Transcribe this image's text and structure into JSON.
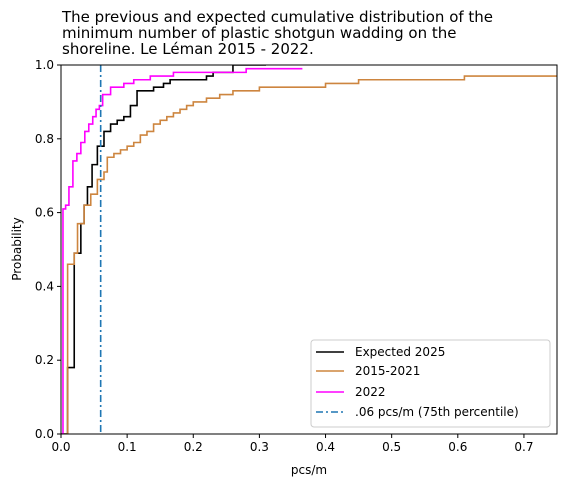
{
  "chart_data": {
    "type": "line",
    "subtype": "ecdf-step",
    "title_lines": [
      "The previous and expected cumulative distribution of the",
      "minimum number of plastic shotgun wadding on the",
      "shoreline. Le Léman 2015 - 2022."
    ],
    "xlabel": "pcs/m",
    "ylabel": "Probability",
    "xlim": [
      0,
      0.75
    ],
    "ylim": [
      0,
      1.0
    ],
    "xticks": [
      0.0,
      0.1,
      0.2,
      0.3,
      0.4,
      0.5,
      0.6,
      0.7
    ],
    "xtick_labels": [
      "0.0",
      "0.1",
      "0.2",
      "0.3",
      "0.4",
      "0.5",
      "0.6",
      "0.7"
    ],
    "yticks": [
      0.0,
      0.2,
      0.4,
      0.6,
      0.8,
      1.0
    ],
    "ytick_labels": [
      "0.0",
      "0.2",
      "0.4",
      "0.6",
      "0.8",
      "1.0"
    ],
    "grid": false,
    "legend_position": "bottom-right",
    "series": [
      {
        "name": "Expected 2025",
        "color": "#000000",
        "style": "solid",
        "x": [
          0.0,
          0.01,
          0.013,
          0.02,
          0.03,
          0.035,
          0.04,
          0.047,
          0.055,
          0.06,
          0.065,
          0.075,
          0.085,
          0.095,
          0.105,
          0.115,
          0.13,
          0.14,
          0.155,
          0.165,
          0.19,
          0.22,
          0.23,
          0.26,
          0.3,
          0.31
        ],
        "y": [
          0.0,
          0.18,
          0.18,
          0.49,
          0.57,
          0.62,
          0.67,
          0.73,
          0.78,
          0.78,
          0.82,
          0.84,
          0.85,
          0.86,
          0.89,
          0.93,
          0.93,
          0.94,
          0.95,
          0.96,
          0.96,
          0.97,
          0.98,
          1.0,
          1.0,
          1.0
        ]
      },
      {
        "name": "2015-2021",
        "color": "#cd853f",
        "style": "solid",
        "x": [
          0.0,
          0.01,
          0.02,
          0.025,
          0.035,
          0.045,
          0.055,
          0.065,
          0.07,
          0.08,
          0.09,
          0.1,
          0.11,
          0.12,
          0.13,
          0.14,
          0.15,
          0.16,
          0.17,
          0.18,
          0.19,
          0.2,
          0.22,
          0.24,
          0.26,
          0.3,
          0.4,
          0.45,
          0.5,
          0.55,
          0.61,
          0.75
        ],
        "y": [
          0.0,
          0.46,
          0.49,
          0.57,
          0.62,
          0.65,
          0.69,
          0.71,
          0.75,
          0.76,
          0.77,
          0.78,
          0.79,
          0.81,
          0.82,
          0.84,
          0.85,
          0.86,
          0.87,
          0.88,
          0.89,
          0.9,
          0.91,
          0.92,
          0.93,
          0.94,
          0.95,
          0.96,
          0.96,
          0.96,
          0.97,
          0.97
        ]
      },
      {
        "name": "2022",
        "color": "#ff00ff",
        "style": "solid",
        "x": [
          0.0,
          0.003,
          0.007,
          0.012,
          0.018,
          0.024,
          0.03,
          0.036,
          0.042,
          0.048,
          0.053,
          0.058,
          0.063,
          0.075,
          0.095,
          0.11,
          0.125,
          0.135,
          0.15,
          0.17,
          0.2,
          0.24,
          0.28,
          0.31,
          0.365
        ],
        "y": [
          0.0,
          0.61,
          0.62,
          0.67,
          0.74,
          0.76,
          0.79,
          0.82,
          0.84,
          0.86,
          0.88,
          0.89,
          0.92,
          0.94,
          0.95,
          0.96,
          0.96,
          0.97,
          0.97,
          0.98,
          0.98,
          0.98,
          0.99,
          0.99,
          0.99
        ]
      }
    ],
    "reference_line": {
      "name": ".06 pcs/m (75th percentile)",
      "x": 0.06,
      "color": "#1f77b4",
      "style": "dashdot"
    }
  }
}
